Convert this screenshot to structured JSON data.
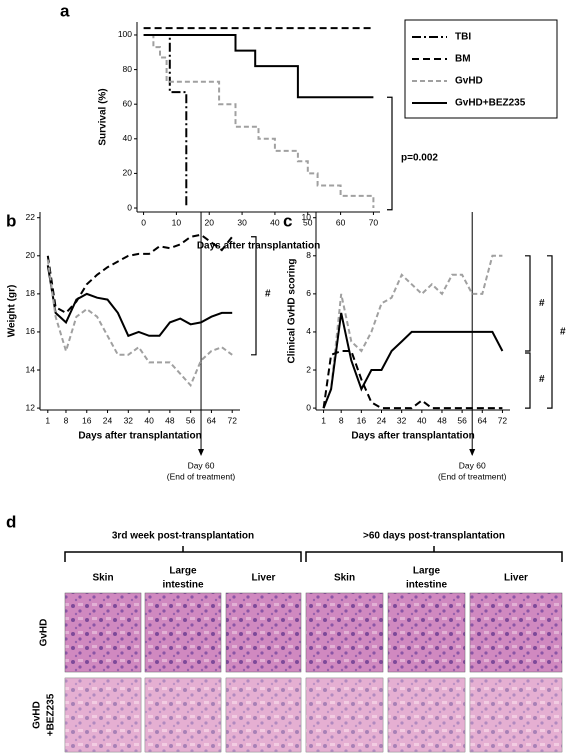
{
  "chart_data": [
    {
      "panel": "a",
      "type": "line",
      "ylabel": "Survival (%)",
      "xlabel": "Days after transplantation",
      "xlim": [
        -2,
        72
      ],
      "ylim": [
        -2.3,
        107.5
      ],
      "xticks": [
        0,
        10,
        20,
        30,
        40,
        50,
        60,
        70
      ],
      "yticks": [
        0,
        20,
        40,
        60,
        80,
        100
      ],
      "annotations": [
        "p=0.002"
      ],
      "series": [
        {
          "name": "TBI",
          "color": "#000000",
          "style": "dash-dot",
          "x": [
            0,
            8,
            8,
            13,
            13
          ],
          "values": [
            100,
            100,
            67,
            67,
            0
          ]
        },
        {
          "name": "BM",
          "color": "#000000",
          "style": "dashed",
          "x": [
            0,
            70
          ],
          "values": [
            104,
            104
          ]
        },
        {
          "name": "GvHD",
          "color": "#a0a0a0",
          "style": "dashed",
          "x": [
            0,
            3,
            3,
            5,
            5,
            7,
            7,
            23,
            23,
            28,
            28,
            35,
            35,
            40,
            40,
            47,
            47,
            50,
            50,
            53,
            53,
            60,
            60,
            70,
            70
          ],
          "values": [
            100,
            100,
            93,
            93,
            87,
            87,
            73,
            73,
            60,
            60,
            47,
            47,
            40,
            40,
            33,
            33,
            27,
            27,
            20,
            20,
            13,
            13,
            7,
            7,
            0
          ]
        },
        {
          "name": "GvHD+BEZ235",
          "color": "#000000",
          "style": "solid",
          "x": [
            0,
            28,
            28,
            34,
            34,
            47,
            47,
            70
          ],
          "values": [
            100,
            100,
            91,
            91,
            82,
            82,
            64,
            64
          ]
        }
      ]
    },
    {
      "panel": "b",
      "type": "line",
      "ylabel": "Weight (gr)",
      "xlabel": "Days after transplantation",
      "xlim": [
        -2,
        75
      ],
      "ylim": [
        11.9,
        22.3
      ],
      "xticks": [
        1,
        8,
        16,
        24,
        32,
        40,
        48,
        56,
        64,
        72
      ],
      "yticks": [
        12,
        14,
        16,
        18,
        20,
        22
      ],
      "reference_x": 60,
      "reference_label": [
        "Day 60",
        "(End of treatment)"
      ],
      "annotations": [
        "#"
      ],
      "series": [
        {
          "color": "#000000",
          "style": "dashed",
          "x": [
            1,
            4,
            8,
            12,
            16,
            20,
            24,
            28,
            32,
            36,
            40,
            44,
            48,
            52,
            56,
            60,
            64,
            68,
            72
          ],
          "values": [
            20,
            17.3,
            17,
            17.6,
            18.5,
            19,
            19.4,
            19.7,
            20,
            20.1,
            20.1,
            20.5,
            20.4,
            20.6,
            21,
            21.1,
            20.7,
            20.3,
            21
          ]
        },
        {
          "color": "#000000",
          "style": "solid",
          "x": [
            1,
            4,
            8,
            12,
            16,
            20,
            24,
            28,
            32,
            36,
            40,
            44,
            48,
            52,
            56,
            60,
            64,
            68,
            72
          ],
          "values": [
            19.5,
            17,
            16.5,
            17.7,
            18,
            17.8,
            17.7,
            17,
            15.8,
            16,
            15.8,
            15.8,
            16.5,
            16.7,
            16.4,
            16.5,
            16.8,
            17,
            17
          ]
        },
        {
          "color": "#a0a0a0",
          "style": "dashed",
          "x": [
            1,
            4,
            8,
            12,
            16,
            20,
            24,
            28,
            32,
            36,
            40,
            44,
            48,
            52,
            56,
            60,
            64,
            68,
            72
          ],
          "values": [
            19.8,
            16.8,
            15,
            16.8,
            17.2,
            16.8,
            15.8,
            14.8,
            14.8,
            15.2,
            14.4,
            14.4,
            14.4,
            13.8,
            13.2,
            14.5,
            15,
            15.2,
            14.8
          ]
        }
      ]
    },
    {
      "panel": "c",
      "type": "line",
      "ylabel": "Clinical GvHD scoring",
      "xlabel": "Days after transplantation",
      "xlim": [
        -2,
        75
      ],
      "ylim": [
        -0.1,
        10.3
      ],
      "xticks": [
        1,
        8,
        16,
        24,
        32,
        40,
        48,
        56,
        64,
        72
      ],
      "yticks": [
        0,
        2,
        4,
        6,
        8,
        10
      ],
      "reference_x": 60,
      "reference_label": [
        "Day 60",
        "(End of treatment)"
      ],
      "annotations": [
        "#",
        "#",
        "#"
      ],
      "series": [
        {
          "color": "#a0a0a0",
          "style": "dashed",
          "x": [
            1,
            4,
            8,
            12,
            16,
            20,
            24,
            28,
            32,
            36,
            40,
            44,
            48,
            52,
            56,
            60,
            64,
            68,
            72
          ],
          "values": [
            0,
            1,
            6,
            3.5,
            3,
            4,
            5.5,
            5.8,
            7,
            6.5,
            6,
            6.5,
            6,
            7,
            7,
            6,
            6,
            8,
            8
          ]
        },
        {
          "color": "#000000",
          "style": "solid",
          "x": [
            1,
            4,
            8,
            12,
            16,
            20,
            24,
            28,
            32,
            36,
            40,
            44,
            48,
            52,
            56,
            60,
            64,
            68,
            72
          ],
          "values": [
            0,
            1,
            5,
            2.5,
            1,
            2,
            2,
            3,
            3.5,
            4,
            4,
            4,
            4,
            4,
            4,
            4,
            4,
            4,
            3
          ]
        },
        {
          "color": "#000000",
          "style": "dashed",
          "x": [
            1,
            4,
            8,
            12,
            16,
            20,
            24,
            28,
            32,
            36,
            40,
            44,
            48,
            52,
            56,
            60,
            64,
            68,
            72
          ],
          "values": [
            0,
            2.8,
            3,
            3,
            1.5,
            0.3,
            0,
            0,
            0,
            0,
            0.4,
            0,
            0,
            0,
            0,
            0,
            0,
            0,
            0
          ]
        }
      ]
    }
  ],
  "histology": {
    "panel": "d",
    "groups": [
      {
        "title": "3rd week post-transplantation",
        "columns": [
          [
            "Skin"
          ],
          [
            "Large",
            "intestine"
          ],
          [
            "Liver"
          ]
        ]
      },
      {
        "title": ">60 days post-transplantation",
        "columns": [
          [
            "Skin"
          ],
          [
            "Large",
            "intestine"
          ],
          [
            "Liver"
          ]
        ]
      }
    ],
    "rows": [
      [
        "GvHD"
      ],
      [
        "GvHD",
        "+BEZ235"
      ]
    ]
  }
}
